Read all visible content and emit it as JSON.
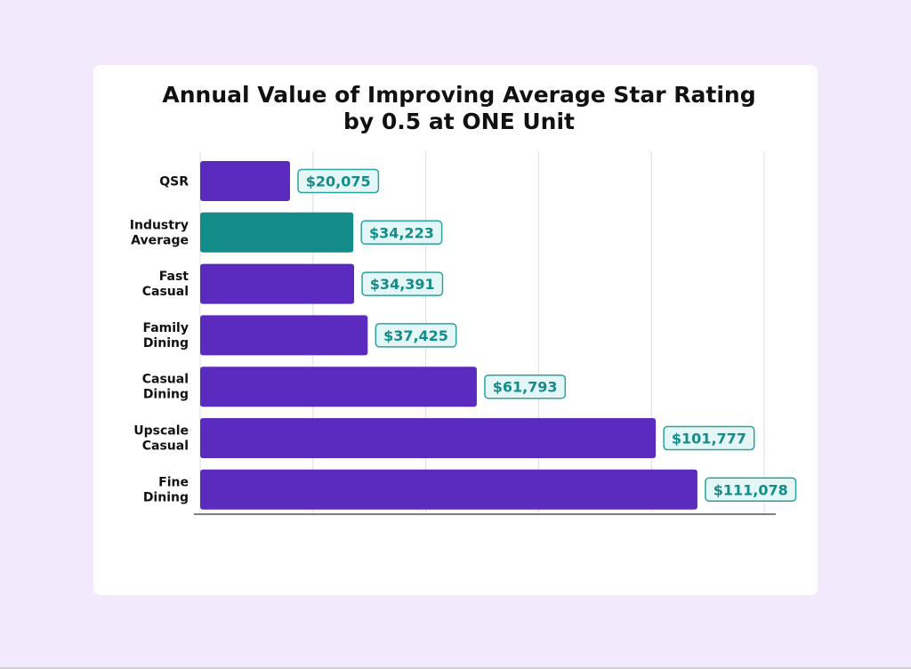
{
  "chart_data": {
    "type": "bar",
    "orientation": "horizontal",
    "title": [
      "Annual Value of Improving Average Star Rating",
      "by 0.5 at ONE Unit"
    ],
    "categories": [
      [
        "QSR"
      ],
      [
        "Industry",
        "Average"
      ],
      [
        "Fast",
        "Casual"
      ],
      [
        "Family",
        "Dining"
      ],
      [
        "Casual",
        "Dining"
      ],
      [
        "Upscale",
        "Casual"
      ],
      [
        "Fine",
        "Dining"
      ]
    ],
    "values": [
      20075,
      34223,
      34391,
      37425,
      61793,
      101777,
      111078
    ],
    "value_labels": [
      "$20,075",
      "$34,223",
      "$34,391",
      "$37,425",
      "$61,793",
      "$101,777",
      "$111,078"
    ],
    "highlight_index": 1,
    "xlim": [
      0,
      126000
    ],
    "grid": true,
    "colors": {
      "bar": "#5b2bbf",
      "highlight": "#148c8a",
      "label_text": "#148c8a",
      "label_fill": "#e4f7f6",
      "label_border": "#2aa29d",
      "grid": "#dddddd",
      "axis": "#555555"
    }
  }
}
